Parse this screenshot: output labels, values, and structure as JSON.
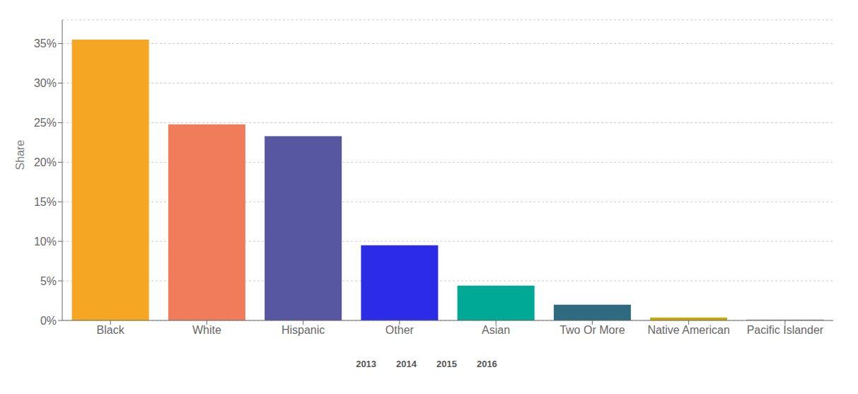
{
  "chart_data": {
    "type": "bar",
    "categories": [
      "Black",
      "White",
      "Hispanic",
      "Other",
      "Asian",
      "Two Or More",
      "Native American",
      "Pacific Islander"
    ],
    "values": [
      35.5,
      24.8,
      23.3,
      9.5,
      4.4,
      2.0,
      0.35,
      0.12
    ],
    "colors": [
      "#F5A623",
      "#F07C5B",
      "#5756A0",
      "#2B2BE8",
      "#00A896",
      "#2E6B80",
      "#C8A900",
      "#999999"
    ],
    "ylabel": "Share",
    "ylim": [
      0,
      38
    ],
    "yticks": [
      {
        "value": 0,
        "label": "0%"
      },
      {
        "value": 5,
        "label": "5%"
      },
      {
        "value": 10,
        "label": "10%"
      },
      {
        "value": 15,
        "label": "15%"
      },
      {
        "value": 20,
        "label": "20%"
      },
      {
        "value": 25,
        "label": "25%"
      },
      {
        "value": 30,
        "label": "30%"
      },
      {
        "value": 35,
        "label": "35%"
      }
    ],
    "grid": true,
    "annotations": [
      "2013",
      "2014",
      "2015",
      "2016"
    ]
  }
}
